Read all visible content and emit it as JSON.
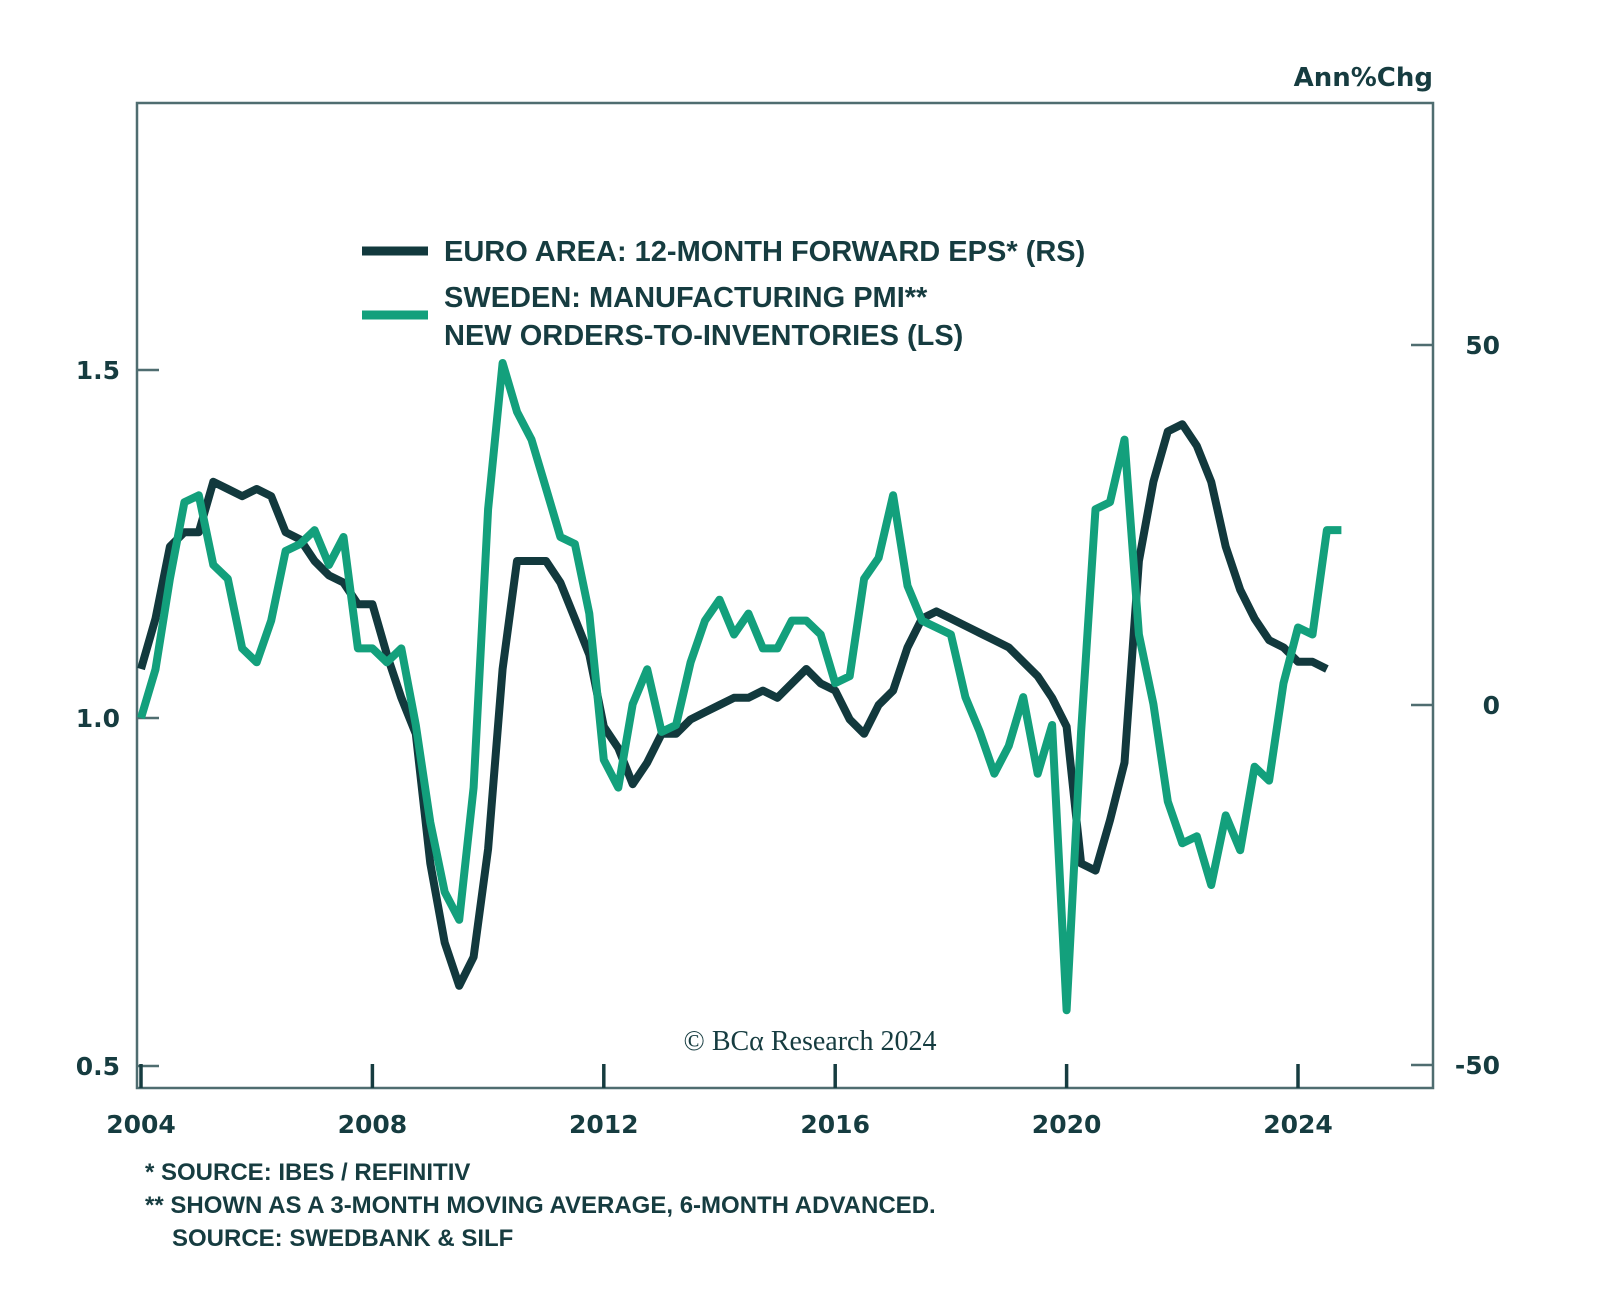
{
  "chart_data": {
    "type": "line",
    "title": "",
    "unit_label": "Ann%Chg",
    "xlabel": "",
    "x_ticks": [
      "2004",
      "2008",
      "2012",
      "2016",
      "2020",
      "2024"
    ],
    "x_range": [
      2004,
      2026.3
    ],
    "left_axis": {
      "label": "LS",
      "ticks": [
        "0.5",
        "1.0",
        "1.5"
      ],
      "tick_values": [
        0.5,
        1.0,
        1.5
      ],
      "range": [
        0.48,
        1.92
      ]
    },
    "right_axis": {
      "label": "RS",
      "ticks": [
        "-50",
        "0",
        "50"
      ],
      "tick_values": [
        -50,
        0,
        50
      ],
      "range": [
        -52,
        84
      ]
    },
    "grid": false,
    "legend_position": "top-center",
    "series": [
      {
        "name": "EURO AREA: 12-MONTH FORWARD EPS* (RS)",
        "axis": "right",
        "color": "#12393d",
        "x": [
          2004.0,
          2004.25,
          2004.5,
          2004.75,
          2005.0,
          2005.25,
          2005.5,
          2005.75,
          2006.0,
          2006.25,
          2006.5,
          2006.75,
          2007.0,
          2007.25,
          2007.5,
          2007.75,
          2008.0,
          2008.25,
          2008.5,
          2008.75,
          2009.0,
          2009.25,
          2009.5,
          2009.75,
          2010.0,
          2010.25,
          2010.5,
          2010.75,
          2011.0,
          2011.25,
          2011.5,
          2011.75,
          2012.0,
          2012.25,
          2012.5,
          2012.75,
          2013.0,
          2013.25,
          2013.5,
          2013.75,
          2014.0,
          2014.25,
          2014.5,
          2014.75,
          2015.0,
          2015.25,
          2015.5,
          2015.75,
          2016.0,
          2016.25,
          2016.5,
          2016.75,
          2017.0,
          2017.25,
          2017.5,
          2017.75,
          2018.0,
          2018.25,
          2018.5,
          2018.75,
          2019.0,
          2019.25,
          2019.5,
          2019.75,
          2020.0,
          2020.25,
          2020.5,
          2020.75,
          2021.0,
          2021.25,
          2021.5,
          2021.75,
          2022.0,
          2022.25,
          2022.5,
          2022.75,
          2023.0,
          2023.25,
          2023.5,
          2023.75,
          2024.0,
          2024.25,
          2024.5
        ],
        "values": [
          5,
          12,
          22,
          24,
          24,
          31,
          30,
          29,
          30,
          29,
          24,
          23,
          20,
          18,
          17,
          14,
          14,
          7,
          1,
          -4,
          -22,
          -33,
          -39,
          -35,
          -20,
          5,
          20,
          20,
          20,
          17,
          12,
          7,
          -3,
          -6,
          -11,
          -8,
          -4,
          -4,
          -2,
          -1,
          0,
          1,
          1,
          2,
          1,
          3,
          5,
          3,
          2,
          -2,
          -4,
          0,
          2,
          8,
          12,
          13,
          12,
          11,
          10,
          9,
          8,
          6,
          4,
          1,
          -3,
          -22,
          -23,
          -16,
          -8,
          20,
          31,
          38,
          39,
          36,
          31,
          22,
          16,
          12,
          9,
          8,
          6,
          6,
          5
        ]
      },
      {
        "name": "SWEDEN: MANUFACTURING PMI** NEW ORDERS-TO-INVENTORIES (LS)",
        "axis": "left",
        "color": "#13a07c",
        "x": [
          2004.0,
          2004.25,
          2004.5,
          2004.75,
          2005.0,
          2005.25,
          2005.5,
          2005.75,
          2006.0,
          2006.25,
          2006.5,
          2006.75,
          2007.0,
          2007.25,
          2007.5,
          2007.75,
          2008.0,
          2008.25,
          2008.5,
          2008.75,
          2009.0,
          2009.25,
          2009.5,
          2009.75,
          2010.0,
          2010.25,
          2010.5,
          2010.75,
          2011.0,
          2011.25,
          2011.5,
          2011.75,
          2012.0,
          2012.25,
          2012.5,
          2012.75,
          2013.0,
          2013.25,
          2013.5,
          2013.75,
          2014.0,
          2014.25,
          2014.5,
          2014.75,
          2015.0,
          2015.25,
          2015.5,
          2015.75,
          2016.0,
          2016.25,
          2016.5,
          2016.75,
          2017.0,
          2017.25,
          2017.5,
          2017.75,
          2018.0,
          2018.25,
          2018.5,
          2018.75,
          2019.0,
          2019.25,
          2019.5,
          2019.75,
          2020.0,
          2020.25,
          2020.5,
          2020.75,
          2021.0,
          2021.25,
          2021.5,
          2021.75,
          2022.0,
          2022.25,
          2022.5,
          2022.75,
          2023.0,
          2023.25,
          2023.5,
          2023.75,
          2024.0,
          2024.25,
          2024.5,
          2024.75
        ],
        "values": [
          1.0,
          1.07,
          1.2,
          1.31,
          1.32,
          1.22,
          1.2,
          1.1,
          1.08,
          1.14,
          1.24,
          1.25,
          1.27,
          1.22,
          1.26,
          1.1,
          1.1,
          1.08,
          1.1,
          0.99,
          0.85,
          0.75,
          0.71,
          0.9,
          1.3,
          1.51,
          1.44,
          1.4,
          1.33,
          1.26,
          1.25,
          1.15,
          0.94,
          0.9,
          1.02,
          1.07,
          0.98,
          0.99,
          1.08,
          1.14,
          1.17,
          1.12,
          1.15,
          1.1,
          1.1,
          1.14,
          1.14,
          1.12,
          1.05,
          1.06,
          1.2,
          1.23,
          1.32,
          1.19,
          1.14,
          1.13,
          1.12,
          1.03,
          0.98,
          0.92,
          0.96,
          1.03,
          0.92,
          0.99,
          0.58,
          0.98,
          1.3,
          1.31,
          1.4,
          1.12,
          1.02,
          0.88,
          0.82,
          0.83,
          0.76,
          0.86,
          0.81,
          0.93,
          0.91,
          1.05,
          1.13,
          1.12,
          1.27,
          1.27
        ]
      }
    ],
    "annotations": [
      "© BCα Research 2024"
    ],
    "footnotes": [
      "*  SOURCE: IBES / REFINITIV",
      "** SHOWN AS A 3-MONTH MOVING AVERAGE, 6-MONTH ADVANCED.",
      "    SOURCE: SWEDBANK & SILF"
    ]
  },
  "legend": {
    "items": [
      {
        "lines": [
          "EURO AREA: 12-MONTH FORWARD EPS* (RS)"
        ],
        "color": "#12393d"
      },
      {
        "lines": [
          "SWEDEN: MANUFACTURING PMI**",
          "NEW ORDERS-TO-INVENTORIES (LS)"
        ],
        "color": "#13a07c"
      }
    ]
  },
  "copyright": "© BCα Research 2024",
  "footnotes": {
    "line1": "*  SOURCE: IBES / REFINITIV",
    "line2": "** SHOWN AS A 3-MONTH MOVING AVERAGE, 6-MONTH ADVANCED.",
    "line3": "SOURCE: SWEDBANK & SILF"
  },
  "colors": {
    "frame": "#4f6d70",
    "text": "#163c40",
    "dark_series": "#12393d",
    "green_series": "#13a07c"
  }
}
